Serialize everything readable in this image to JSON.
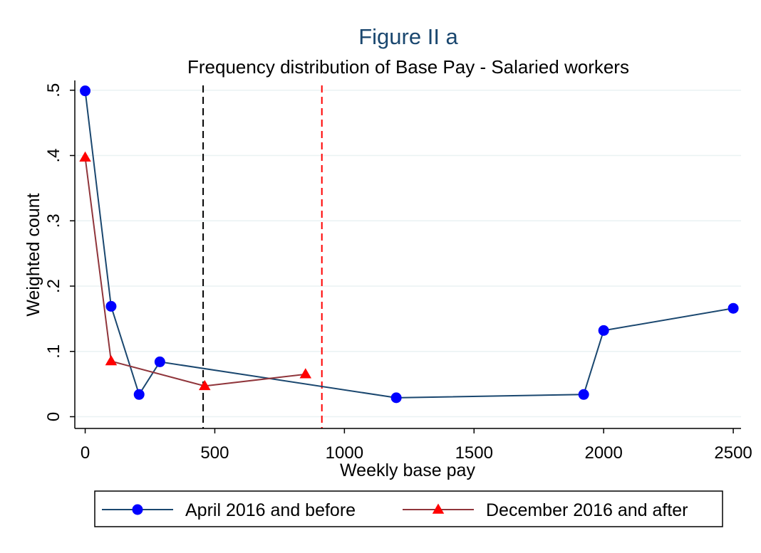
{
  "chart_data": {
    "type": "line",
    "title": "Figure II a",
    "subtitle": "Frequency distribution of Base Pay - Salaried workers",
    "xlabel": "Weekly base pay",
    "ylabel": "Weighted count",
    "xlim": [
      -40,
      2530
    ],
    "ylim": [
      -0.018,
      0.515
    ],
    "x_ticks": [
      0,
      500,
      1000,
      1500,
      2000,
      2500
    ],
    "x_tick_labels": [
      "0",
      "500",
      "1000",
      "1500",
      "2000",
      "2500"
    ],
    "y_ticks": [
      0,
      0.1,
      0.2,
      0.3,
      0.4,
      0.5
    ],
    "y_tick_labels": [
      "0",
      ".1",
      ".2",
      ".3",
      ".4",
      ".5"
    ],
    "grid": "horizontal",
    "reference_lines": [
      {
        "x": 455,
        "color": "#000000",
        "style": "dashed"
      },
      {
        "x": 913,
        "color": "#ff0000",
        "style": "dashed"
      }
    ],
    "series": [
      {
        "name": "April 2016 and before",
        "line_color": "#1a476f",
        "marker": "circle",
        "marker_color": "#0000ff",
        "x": [
          0,
          100,
          208,
          288,
          1200,
          1923,
          2000,
          2500
        ],
        "y": [
          0.499,
          0.169,
          0.034,
          0.084,
          0.029,
          0.034,
          0.132,
          0.166
        ]
      },
      {
        "name": "December 2016 and after",
        "line_color": "#90353b",
        "marker": "triangle",
        "marker_color": "#ff0000",
        "x": [
          0,
          100,
          461,
          850
        ],
        "y": [
          0.397,
          0.085,
          0.047,
          0.065
        ]
      }
    ],
    "legend_position": "bottom"
  }
}
